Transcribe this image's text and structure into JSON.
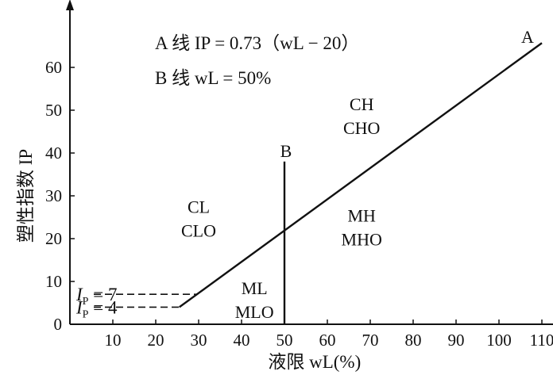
{
  "chart_data": {
    "type": "line",
    "xlabel": "液限 wL(%)",
    "ylabel": "塑性指数 IP",
    "xlim": [
      0,
      115
    ],
    "ylim": [
      0,
      70
    ],
    "x_ticks": [
      10,
      20,
      30,
      40,
      50,
      60,
      70,
      80,
      90,
      100,
      110
    ],
    "y_ticks": [
      0,
      10,
      20,
      30,
      40,
      50,
      60
    ],
    "series": [
      {
        "name": "A",
        "x": [
          25.5,
          110
        ],
        "y": [
          4,
          65.7
        ]
      },
      {
        "name": "B",
        "x": [
          50,
          50
        ],
        "y": [
          0,
          38
        ]
      }
    ],
    "reference_lines": [
      {
        "label": "IP = 7",
        "y": 7,
        "x": [
          0,
          29.6
        ]
      },
      {
        "label": "IP = 4",
        "y": 4,
        "x": [
          0,
          25.5
        ]
      }
    ],
    "equations": {
      "a_line": "A 线 IP = 0.73（wL − 20）",
      "b_line": "B 线 wL = 50%"
    },
    "regions": [
      {
        "labels": [
          "CH",
          "CHO"
        ],
        "x": 68,
        "y": 50
      },
      {
        "labels": [
          "CL",
          "CLO"
        ],
        "x": 30,
        "y": 26
      },
      {
        "labels": [
          "MH",
          "MHO"
        ],
        "x": 68,
        "y": 24
      },
      {
        "labels": [
          "ML",
          "MLO"
        ],
        "x": 43,
        "y": 7
      }
    ],
    "grid": false
  }
}
